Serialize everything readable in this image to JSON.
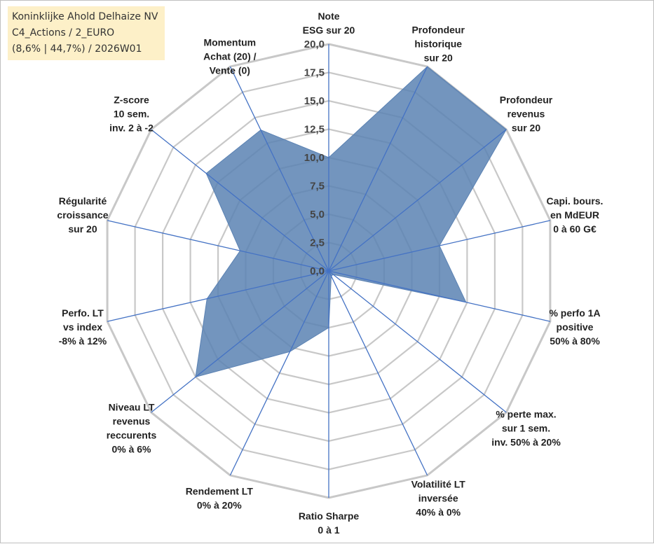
{
  "info_box": {
    "line1": "Koninklijke Ahold Delhaize NV",
    "line2": "C4_Actions / 2_EURO",
    "line3": "(8,6% | 44,7%) / 2026W01"
  },
  "colors": {
    "fill": "#5b82b3",
    "axis": "#4472c4",
    "grid": "#c8c8c8"
  },
  "chart_data": {
    "type": "radar",
    "title": "",
    "rmin": 0,
    "rmax": 20,
    "ticks": [
      "0,0",
      "2,5",
      "5,0",
      "7,5",
      "10,0",
      "12,5",
      "15,0",
      "17,5",
      "20,0"
    ],
    "axes": [
      {
        "lines": [
          "Note",
          "ESG sur 20"
        ],
        "value": 10
      },
      {
        "lines": [
          "Profondeur",
          "historique",
          "sur 20"
        ],
        "value": 20
      },
      {
        "lines": [
          "Profondeur",
          "revenus",
          "sur 20"
        ],
        "value": 20
      },
      {
        "lines": [
          "Capi. bours.",
          "en MdEUR",
          "0 à 60 G€"
        ],
        "value": 10
      },
      {
        "lines": [
          "% perfo 1A",
          "positive",
          "50% à 80%"
        ],
        "value": 12.4
      },
      {
        "lines": [
          "% perte max.",
          "sur 1 sem.",
          "inv. 50% à 20%"
        ],
        "value": 0.5
      },
      {
        "lines": [
          "Volatilité LT",
          "inversée",
          "40% à 0%"
        ],
        "value": 0.5
      },
      {
        "lines": [
          "Ratio Sharpe",
          "0 à 1"
        ],
        "value": 5
      },
      {
        "lines": [
          "Rendement LT",
          "0% à 20%"
        ],
        "value": 7.9
      },
      {
        "lines": [
          "Niveau LT",
          "revenus",
          "reccurents",
          "0% à 6%"
        ],
        "value": 15
      },
      {
        "lines": [
          "Perfo. LT",
          "vs index",
          "-8% à 12%"
        ],
        "value": 11
      },
      {
        "lines": [
          "Régularité",
          "croissance",
          "sur 20"
        ],
        "value": 8
      },
      {
        "lines": [
          "Z-score",
          "10 sem.",
          "inv. 2 à -2"
        ],
        "value": 13.8
      },
      {
        "lines": [
          "Momentum",
          "Achat (20) /",
          "Vente (0)"
        ],
        "value": 13.8
      }
    ]
  }
}
